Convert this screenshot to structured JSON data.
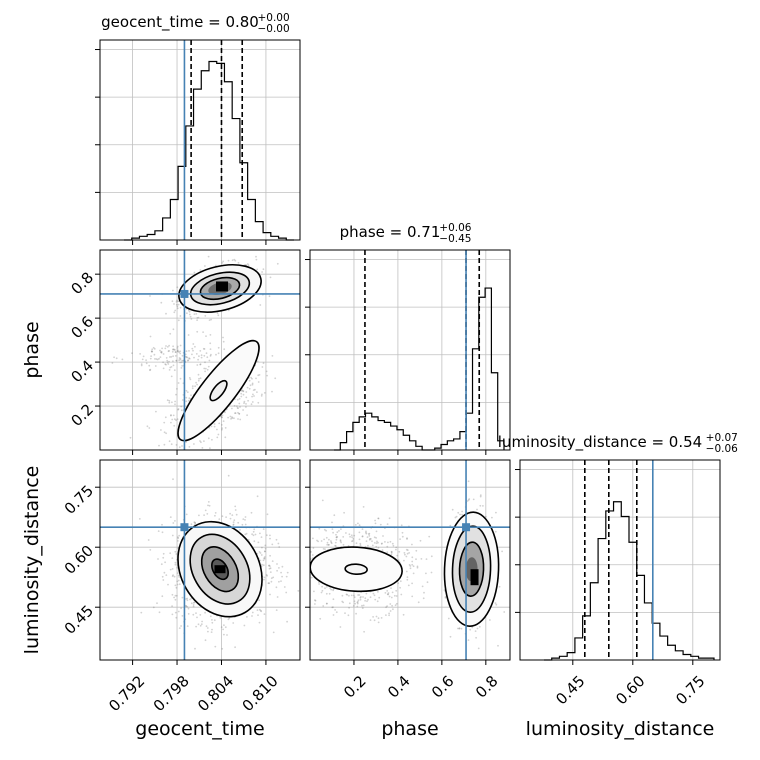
{
  "chart_data": {
    "type": "corner",
    "colors": {
      "truth": "#4682b4",
      "hist": "#000000",
      "grid": "#c0c0c0",
      "scatter": "#7f7f7f"
    },
    "params": [
      {
        "name": "geocent_time",
        "label": "geocent_time",
        "range": [
          0.7876,
          0.8146
        ],
        "ticks": [
          "0.792",
          "0.798",
          "0.804",
          "0.810"
        ],
        "truth": 0.799,
        "quantiles": [
          0.7999,
          0.804,
          0.8068
        ]
      },
      {
        "name": "phase",
        "label": "phase",
        "range": [
          0.0,
          0.91
        ],
        "ticks": [
          "0.2",
          "0.4",
          "0.6",
          "0.8"
        ],
        "truth": 0.71,
        "quantiles": [
          0.25,
          0.71,
          0.77
        ]
      },
      {
        "name": "luminosity_distance",
        "label": "luminosity_distance",
        "range": [
          0.318,
          0.818
        ],
        "ticks": [
          "0.45",
          "0.60",
          "0.75"
        ],
        "truth": 0.65,
        "quantiles": [
          0.48,
          0.54,
          0.61
        ]
      }
    ],
    "titles": [
      {
        "text": "geocent_time = 0.80",
        "sup": "+0.00",
        "sub": "−0.00"
      },
      {
        "text": "phase = 0.71",
        "sup": "+0.06",
        "sub": "−0.45"
      },
      {
        "text": "luminosity_distance = 0.54",
        "sup": "+0.07",
        "sub": "−0.06"
      }
    ],
    "hists": [
      {
        "param": "geocent_time",
        "counts": [
          0,
          0.01,
          0.02,
          0.03,
          0.05,
          0.12,
          0.22,
          0.4,
          0.62,
          0.82,
          0.92,
          0.97,
          0.96,
          0.86,
          0.66,
          0.42,
          0.22,
          0.1,
          0.04,
          0.02,
          0.01,
          0
        ]
      },
      {
        "param": "phase",
        "counts": [
          0,
          0.04,
          0.1,
          0.15,
          0.18,
          0.2,
          0.18,
          0.16,
          0.15,
          0.13,
          0.11,
          0.08,
          0.05,
          0.02,
          0,
          0,
          0.01,
          0.03,
          0.05,
          0.06,
          0.1,
          0.2,
          0.55,
          0.83,
          0.88,
          0.42,
          0.05
        ]
      },
      {
        "param": "luminosity_distance",
        "counts": [
          0,
          0.01,
          0.02,
          0.04,
          0.12,
          0.24,
          0.42,
          0.66,
          0.81,
          0.86,
          0.78,
          0.64,
          0.46,
          0.31,
          0.2,
          0.13,
          0.08,
          0.05,
          0.03,
          0.02,
          0.01,
          0.01
        ]
      }
    ]
  }
}
